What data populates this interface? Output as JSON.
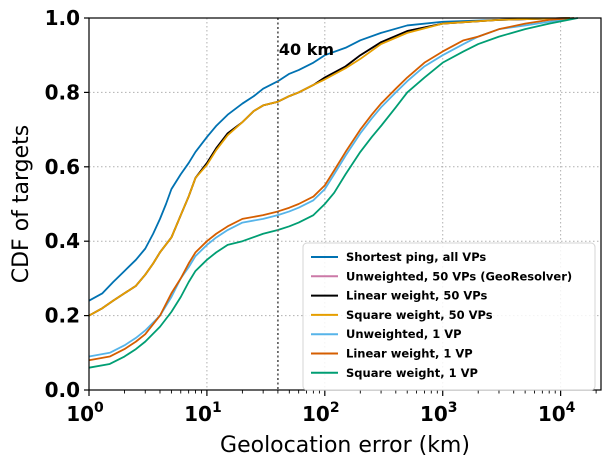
{
  "chart_data": {
    "type": "line",
    "xlabel": "Geolocation error (km)",
    "ylabel": "CDF of targets",
    "xscale": "log",
    "xlim": [
      1,
      22000
    ],
    "ylim": [
      0,
      1
    ],
    "grid": true,
    "legend_position": "bottom-right",
    "y_ticks": [
      "0.0",
      "0.2",
      "0.4",
      "0.6",
      "0.8",
      "1.0"
    ],
    "x_ticks": [
      {
        "value": 1,
        "base": "10",
        "exp": "0"
      },
      {
        "value": 10,
        "base": "10",
        "exp": "1"
      },
      {
        "value": 100,
        "base": "10",
        "exp": "2"
      },
      {
        "value": 1000,
        "base": "10",
        "exp": "3"
      },
      {
        "value": 10000,
        "base": "10",
        "exp": "4"
      }
    ],
    "annotations": [
      {
        "text": "40 km",
        "x": 40,
        "line_style": "dotted"
      }
    ],
    "series": [
      {
        "name": "Shortest ping, all VPs",
        "color": "#0072B2",
        "points": [
          [
            1,
            0.24
          ],
          [
            1.3,
            0.26
          ],
          [
            1.6,
            0.29
          ],
          [
            2,
            0.32
          ],
          [
            2.5,
            0.35
          ],
          [
            3,
            0.38
          ],
          [
            3.5,
            0.42
          ],
          [
            4,
            0.46
          ],
          [
            4.5,
            0.5
          ],
          [
            5,
            0.54
          ],
          [
            6,
            0.58
          ],
          [
            7,
            0.61
          ],
          [
            8,
            0.64
          ],
          [
            10,
            0.68
          ],
          [
            12,
            0.71
          ],
          [
            15,
            0.74
          ],
          [
            20,
            0.77
          ],
          [
            25,
            0.79
          ],
          [
            30,
            0.81
          ],
          [
            40,
            0.83
          ],
          [
            50,
            0.85
          ],
          [
            60,
            0.86
          ],
          [
            80,
            0.88
          ],
          [
            100,
            0.9
          ],
          [
            150,
            0.92
          ],
          [
            200,
            0.94
          ],
          [
            300,
            0.96
          ],
          [
            500,
            0.98
          ],
          [
            1000,
            0.99
          ],
          [
            3000,
            0.995
          ],
          [
            12000,
            1.0
          ]
        ]
      },
      {
        "name": "Unweighted, 50 VPs (GeoResolver)",
        "color": "#CC79A7",
        "points": [
          [
            1,
            0.2
          ],
          [
            1.3,
            0.22
          ],
          [
            1.6,
            0.24
          ],
          [
            2,
            0.26
          ],
          [
            2.5,
            0.28
          ],
          [
            3,
            0.31
          ],
          [
            3.5,
            0.34
          ],
          [
            4,
            0.37
          ],
          [
            5,
            0.41
          ],
          [
            6,
            0.47
          ],
          [
            7,
            0.52
          ],
          [
            8,
            0.57
          ],
          [
            10,
            0.61
          ],
          [
            12,
            0.65
          ],
          [
            15,
            0.69
          ],
          [
            20,
            0.72
          ],
          [
            25,
            0.75
          ],
          [
            30,
            0.765
          ],
          [
            40,
            0.775
          ],
          [
            50,
            0.79
          ],
          [
            60,
            0.8
          ],
          [
            80,
            0.82
          ],
          [
            100,
            0.84
          ],
          [
            150,
            0.87
          ],
          [
            200,
            0.9
          ],
          [
            300,
            0.935
          ],
          [
            500,
            0.965
          ],
          [
            1000,
            0.985
          ],
          [
            3000,
            0.995
          ],
          [
            12000,
            1.0
          ]
        ]
      },
      {
        "name": "Linear weight, 50 VPs",
        "color": "#000000",
        "points": [
          [
            1,
            0.2
          ],
          [
            1.3,
            0.22
          ],
          [
            1.6,
            0.24
          ],
          [
            2,
            0.26
          ],
          [
            2.5,
            0.28
          ],
          [
            3,
            0.31
          ],
          [
            3.5,
            0.34
          ],
          [
            4,
            0.37
          ],
          [
            5,
            0.41
          ],
          [
            6,
            0.47
          ],
          [
            7,
            0.52
          ],
          [
            8,
            0.57
          ],
          [
            10,
            0.61
          ],
          [
            12,
            0.65
          ],
          [
            15,
            0.69
          ],
          [
            20,
            0.72
          ],
          [
            25,
            0.75
          ],
          [
            30,
            0.765
          ],
          [
            40,
            0.775
          ],
          [
            50,
            0.79
          ],
          [
            60,
            0.8
          ],
          [
            80,
            0.82
          ],
          [
            100,
            0.84
          ],
          [
            150,
            0.87
          ],
          [
            200,
            0.9
          ],
          [
            300,
            0.935
          ],
          [
            500,
            0.965
          ],
          [
            1000,
            0.985
          ],
          [
            3000,
            0.995
          ],
          [
            12000,
            1.0
          ]
        ]
      },
      {
        "name": "Square weight, 50 VPs",
        "color": "#E69F00",
        "points": [
          [
            1,
            0.2
          ],
          [
            1.3,
            0.22
          ],
          [
            1.6,
            0.24
          ],
          [
            2,
            0.26
          ],
          [
            2.5,
            0.28
          ],
          [
            3,
            0.31
          ],
          [
            3.5,
            0.34
          ],
          [
            4,
            0.37
          ],
          [
            5,
            0.41
          ],
          [
            6,
            0.47
          ],
          [
            7,
            0.52
          ],
          [
            8,
            0.57
          ],
          [
            10,
            0.605
          ],
          [
            12,
            0.645
          ],
          [
            15,
            0.685
          ],
          [
            20,
            0.72
          ],
          [
            25,
            0.75
          ],
          [
            30,
            0.765
          ],
          [
            40,
            0.775
          ],
          [
            50,
            0.79
          ],
          [
            60,
            0.8
          ],
          [
            80,
            0.82
          ],
          [
            100,
            0.835
          ],
          [
            150,
            0.865
          ],
          [
            200,
            0.89
          ],
          [
            300,
            0.93
          ],
          [
            500,
            0.96
          ],
          [
            1000,
            0.985
          ],
          [
            3000,
            0.995
          ],
          [
            12000,
            1.0
          ]
        ]
      },
      {
        "name": "Unweighted, 1 VP",
        "color": "#56B4E9",
        "points": [
          [
            1,
            0.09
          ],
          [
            1.5,
            0.1
          ],
          [
            2,
            0.12
          ],
          [
            2.5,
            0.14
          ],
          [
            3,
            0.16
          ],
          [
            4,
            0.2
          ],
          [
            5,
            0.25
          ],
          [
            6,
            0.3
          ],
          [
            7,
            0.33
          ],
          [
            8,
            0.36
          ],
          [
            10,
            0.39
          ],
          [
            12,
            0.41
          ],
          [
            15,
            0.43
          ],
          [
            20,
            0.45
          ],
          [
            30,
            0.46
          ],
          [
            40,
            0.47
          ],
          [
            50,
            0.48
          ],
          [
            60,
            0.49
          ],
          [
            80,
            0.51
          ],
          [
            100,
            0.54
          ],
          [
            120,
            0.58
          ],
          [
            150,
            0.63
          ],
          [
            200,
            0.69
          ],
          [
            250,
            0.73
          ],
          [
            300,
            0.76
          ],
          [
            400,
            0.8
          ],
          [
            500,
            0.83
          ],
          [
            700,
            0.87
          ],
          [
            1000,
            0.9
          ],
          [
            1500,
            0.93
          ],
          [
            2000,
            0.95
          ],
          [
            3000,
            0.97
          ],
          [
            5000,
            0.98
          ],
          [
            8000,
            0.99
          ],
          [
            13000,
            1.0
          ]
        ]
      },
      {
        "name": "Linear weight, 1 VP",
        "color": "#D55E00",
        "points": [
          [
            1,
            0.08
          ],
          [
            1.5,
            0.09
          ],
          [
            2,
            0.11
          ],
          [
            2.5,
            0.13
          ],
          [
            3,
            0.15
          ],
          [
            4,
            0.2
          ],
          [
            5,
            0.26
          ],
          [
            6,
            0.3
          ],
          [
            7,
            0.34
          ],
          [
            8,
            0.37
          ],
          [
            10,
            0.4
          ],
          [
            12,
            0.42
          ],
          [
            15,
            0.44
          ],
          [
            20,
            0.46
          ],
          [
            30,
            0.47
          ],
          [
            40,
            0.48
          ],
          [
            50,
            0.49
          ],
          [
            60,
            0.5
          ],
          [
            80,
            0.52
          ],
          [
            100,
            0.55
          ],
          [
            120,
            0.59
          ],
          [
            150,
            0.64
          ],
          [
            200,
            0.7
          ],
          [
            250,
            0.74
          ],
          [
            300,
            0.77
          ],
          [
            400,
            0.81
          ],
          [
            500,
            0.84
          ],
          [
            700,
            0.88
          ],
          [
            1000,
            0.91
          ],
          [
            1500,
            0.94
          ],
          [
            2000,
            0.95
          ],
          [
            3000,
            0.97
          ],
          [
            5000,
            0.985
          ],
          [
            8000,
            0.995
          ],
          [
            13000,
            1.0
          ]
        ]
      },
      {
        "name": "Square weight, 1 VP",
        "color": "#009E73",
        "points": [
          [
            1,
            0.06
          ],
          [
            1.5,
            0.07
          ],
          [
            2,
            0.09
          ],
          [
            2.5,
            0.11
          ],
          [
            3,
            0.13
          ],
          [
            4,
            0.17
          ],
          [
            5,
            0.21
          ],
          [
            6,
            0.25
          ],
          [
            7,
            0.29
          ],
          [
            8,
            0.32
          ],
          [
            10,
            0.35
          ],
          [
            12,
            0.37
          ],
          [
            15,
            0.39
          ],
          [
            20,
            0.4
          ],
          [
            30,
            0.42
          ],
          [
            40,
            0.43
          ],
          [
            50,
            0.44
          ],
          [
            60,
            0.45
          ],
          [
            80,
            0.47
          ],
          [
            100,
            0.5
          ],
          [
            120,
            0.53
          ],
          [
            150,
            0.58
          ],
          [
            200,
            0.64
          ],
          [
            250,
            0.68
          ],
          [
            300,
            0.71
          ],
          [
            400,
            0.76
          ],
          [
            500,
            0.8
          ],
          [
            700,
            0.84
          ],
          [
            1000,
            0.88
          ],
          [
            1500,
            0.91
          ],
          [
            2000,
            0.93
          ],
          [
            3000,
            0.95
          ],
          [
            5000,
            0.97
          ],
          [
            8000,
            0.985
          ],
          [
            14000,
            1.0
          ]
        ]
      }
    ]
  }
}
